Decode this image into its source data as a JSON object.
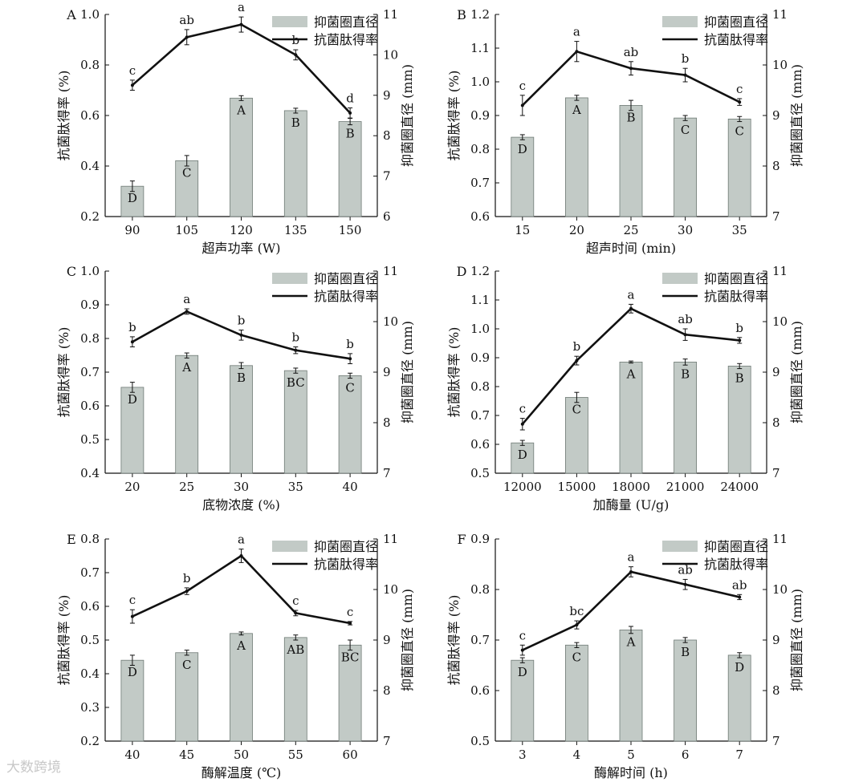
{
  "figure_title": "",
  "legend": {
    "bar_label": "抑菌圈直径",
    "line_label": "抗菌肽得率"
  },
  "watermark": "大数跨境",
  "colors": {
    "bar": "#c2cac6",
    "bar_stroke": "#6f7a75",
    "line": "#111111"
  },
  "chart_data": [
    {
      "panel": "A",
      "type": "bar+line",
      "xlabel": "超声功率 (W)",
      "ylabel_left": "抗菌肽得率 (%)",
      "ylabel_right": "抑菌圈直径 (mm)",
      "categories": [
        "90",
        "105",
        "120",
        "135",
        "150"
      ],
      "left_axis": {
        "min": 0.2,
        "max": 1.0,
        "ticks": [
          0.2,
          0.4,
          0.6,
          0.8,
          1.0
        ],
        "labels": [
          "0.2",
          "0.4",
          "0.6",
          "0.8",
          "1.0"
        ]
      },
      "right_axis": {
        "min": 6,
        "max": 11,
        "ticks": [
          6,
          7,
          8,
          9,
          10,
          11
        ],
        "labels": [
          "6",
          "7",
          "8",
          "9",
          "10",
          "11"
        ]
      },
      "series": [
        {
          "name": "抑菌圈直径",
          "kind": "bar",
          "axis": "right",
          "values": [
            6.75,
            7.38,
            8.93,
            8.62,
            8.35
          ],
          "errors": [
            0.13,
            0.13,
            0.06,
            0.06,
            0.08
          ],
          "letters": [
            "D",
            "C",
            "A",
            "B",
            "B"
          ]
        },
        {
          "name": "抗菌肽得率",
          "kind": "line",
          "axis": "left",
          "values": [
            0.72,
            0.91,
            0.96,
            0.84,
            0.61
          ],
          "errors": [
            0.02,
            0.03,
            0.03,
            0.02,
            0.02
          ],
          "letters": [
            "c",
            "ab",
            "a",
            "b",
            "d"
          ]
        }
      ]
    },
    {
      "panel": "B",
      "type": "bar+line",
      "xlabel": "超声时间 (min)",
      "ylabel_left": "抗菌肽得率 (%)",
      "ylabel_right": "抑菌圈直径 (mm)",
      "categories": [
        "15",
        "20",
        "25",
        "30",
        "35"
      ],
      "left_axis": {
        "min": 0.6,
        "max": 1.2,
        "ticks": [
          0.6,
          0.7,
          0.8,
          0.9,
          1.0,
          1.1,
          1.2
        ],
        "labels": [
          "0.6",
          "0.7",
          "0.8",
          "0.9",
          "1.0",
          "1.1",
          "1.2"
        ]
      },
      "right_axis": {
        "min": 7,
        "max": 11,
        "ticks": [
          7,
          8,
          9,
          10,
          11
        ],
        "labels": [
          "7",
          "8",
          "9",
          "10",
          "11"
        ]
      },
      "series": [
        {
          "name": "抑菌圈直径",
          "kind": "bar",
          "axis": "right",
          "values": [
            8.57,
            9.35,
            9.2,
            8.95,
            8.93
          ],
          "errors": [
            0.05,
            0.05,
            0.1,
            0.05,
            0.05
          ],
          "letters": [
            "D",
            "A",
            "B",
            "C",
            "C"
          ]
        },
        {
          "name": "抗菌肽得率",
          "kind": "line",
          "axis": "left",
          "values": [
            0.93,
            1.09,
            1.04,
            1.02,
            0.94
          ],
          "errors": [
            0.03,
            0.03,
            0.02,
            0.02,
            0.01
          ],
          "letters": [
            "c",
            "a",
            "ab",
            "b",
            "c"
          ]
        }
      ]
    },
    {
      "panel": "C",
      "type": "bar+line",
      "xlabel": "底物浓度 (%)",
      "ylabel_left": "抗菌肽得率 (%)",
      "ylabel_right": "抑菌圈直径 (mm)",
      "categories": [
        "20",
        "25",
        "30",
        "35",
        "40"
      ],
      "left_axis": {
        "min": 0.4,
        "max": 1.0,
        "ticks": [
          0.4,
          0.5,
          0.6,
          0.7,
          0.8,
          0.9,
          1.0
        ],
        "labels": [
          "0.4",
          "0.5",
          "0.6",
          "0.7",
          "0.8",
          "0.9",
          "1.0"
        ]
      },
      "right_axis": {
        "min": 7,
        "max": 11,
        "ticks": [
          7,
          8,
          9,
          10,
          11
        ],
        "labels": [
          "7",
          "8",
          "9",
          "10",
          "11"
        ]
      },
      "series": [
        {
          "name": "抑菌圈直径",
          "kind": "bar",
          "axis": "right",
          "values": [
            8.7,
            9.33,
            9.13,
            9.03,
            8.93
          ],
          "errors": [
            0.1,
            0.05,
            0.06,
            0.05,
            0.05
          ],
          "letters": [
            "D",
            "A",
            "B",
            "BC",
            "C"
          ]
        },
        {
          "name": "抗菌肽得率",
          "kind": "line",
          "axis": "left",
          "values": [
            0.79,
            0.88,
            0.81,
            0.765,
            0.74
          ],
          "errors": [
            0.015,
            0.008,
            0.015,
            0.01,
            0.015
          ],
          "letters": [
            "b",
            "a",
            "b",
            "b",
            "b"
          ]
        }
      ]
    },
    {
      "panel": "D",
      "type": "bar+line",
      "xlabel": "加酶量 (U/g)",
      "ylabel_left": "抗菌肽得率 (%)",
      "ylabel_right": "抑菌圈直径 (mm)",
      "categories": [
        "12000",
        "15000",
        "18000",
        "21000",
        "24000"
      ],
      "left_axis": {
        "min": 0.5,
        "max": 1.2,
        "ticks": [
          0.5,
          0.6,
          0.7,
          0.8,
          0.9,
          1.0,
          1.1,
          1.2
        ],
        "labels": [
          "0.5",
          "0.6",
          "0.7",
          "0.8",
          "0.9",
          "1.0",
          "1.1",
          "1.2"
        ]
      },
      "right_axis": {
        "min": 7,
        "max": 11,
        "ticks": [
          7,
          8,
          9,
          10,
          11
        ],
        "labels": [
          "7",
          "8",
          "9",
          "10",
          "11"
        ]
      },
      "series": [
        {
          "name": "抑菌圈直径",
          "kind": "bar",
          "axis": "right",
          "values": [
            7.6,
            8.5,
            9.2,
            9.2,
            9.12
          ],
          "errors": [
            0.05,
            0.1,
            0.02,
            0.06,
            0.05
          ],
          "letters": [
            "D",
            "C",
            "A",
            "B",
            "B"
          ]
        },
        {
          "name": "抗菌肽得率",
          "kind": "line",
          "axis": "left",
          "values": [
            0.67,
            0.89,
            1.07,
            0.98,
            0.96
          ],
          "errors": [
            0.02,
            0.015,
            0.015,
            0.02,
            0.01
          ],
          "letters": [
            "c",
            "b",
            "a",
            "ab",
            "b"
          ]
        }
      ]
    },
    {
      "panel": "E",
      "type": "bar+line",
      "xlabel": "酶解温度 (℃)",
      "ylabel_left": "抗菌肽得率 (%)",
      "ylabel_right": "抑菌圈直径 (mm)",
      "categories": [
        "40",
        "45",
        "50",
        "55",
        "60"
      ],
      "left_axis": {
        "min": 0.2,
        "max": 0.8,
        "ticks": [
          0.2,
          0.3,
          0.4,
          0.5,
          0.6,
          0.7,
          0.8
        ],
        "labels": [
          "0.2",
          "0.3",
          "0.4",
          "0.5",
          "0.6",
          "0.7",
          "0.8"
        ]
      },
      "right_axis": {
        "min": 7,
        "max": 11,
        "ticks": [
          7,
          8,
          9,
          10,
          11
        ],
        "labels": [
          "7",
          "8",
          "9",
          "10",
          "11"
        ]
      },
      "series": [
        {
          "name": "抑菌圈直径",
          "kind": "bar",
          "axis": "right",
          "values": [
            8.6,
            8.75,
            9.13,
            9.05,
            8.9
          ],
          "errors": [
            0.1,
            0.05,
            0.03,
            0.05,
            0.1
          ],
          "letters": [
            "D",
            "C",
            "A",
            "AB",
            "BC"
          ]
        },
        {
          "name": "抗菌肽得率",
          "kind": "line",
          "axis": "left",
          "values": [
            0.57,
            0.645,
            0.75,
            0.58,
            0.55
          ],
          "errors": [
            0.02,
            0.01,
            0.02,
            0.008,
            0.005
          ],
          "letters": [
            "c",
            "b",
            "a",
            "c",
            "c"
          ]
        }
      ]
    },
    {
      "panel": "F",
      "type": "bar+line",
      "xlabel": "酶解时间 (h)",
      "ylabel_left": "抗菌肽得率 (%)",
      "ylabel_right": "抑菌圈直径 (mm)",
      "categories": [
        "3",
        "4",
        "5",
        "6",
        "7"
      ],
      "left_axis": {
        "min": 0.5,
        "max": 0.9,
        "ticks": [
          0.5,
          0.6,
          0.7,
          0.8,
          0.9
        ],
        "labels": [
          "0.5",
          "0.6",
          "0.7",
          "0.8",
          "0.9"
        ]
      },
      "right_axis": {
        "min": 7,
        "max": 11,
        "ticks": [
          7,
          8,
          9,
          10,
          11
        ],
        "labels": [
          "7",
          "8",
          "9",
          "10",
          "11"
        ]
      },
      "series": [
        {
          "name": "抑菌圈直径",
          "kind": "bar",
          "axis": "right",
          "values": [
            8.6,
            8.9,
            9.2,
            9.0,
            8.7
          ],
          "errors": [
            0.05,
            0.05,
            0.07,
            0.05,
            0.05
          ],
          "letters": [
            "D",
            "C",
            "A",
            "B",
            "D"
          ]
        },
        {
          "name": "抗菌肽得率",
          "kind": "line",
          "axis": "left",
          "values": [
            0.68,
            0.73,
            0.835,
            0.81,
            0.785
          ],
          "errors": [
            0.01,
            0.008,
            0.01,
            0.01,
            0.005
          ],
          "letters": [
            "c",
            "bc",
            "a",
            "ab",
            "ab"
          ]
        }
      ]
    }
  ]
}
